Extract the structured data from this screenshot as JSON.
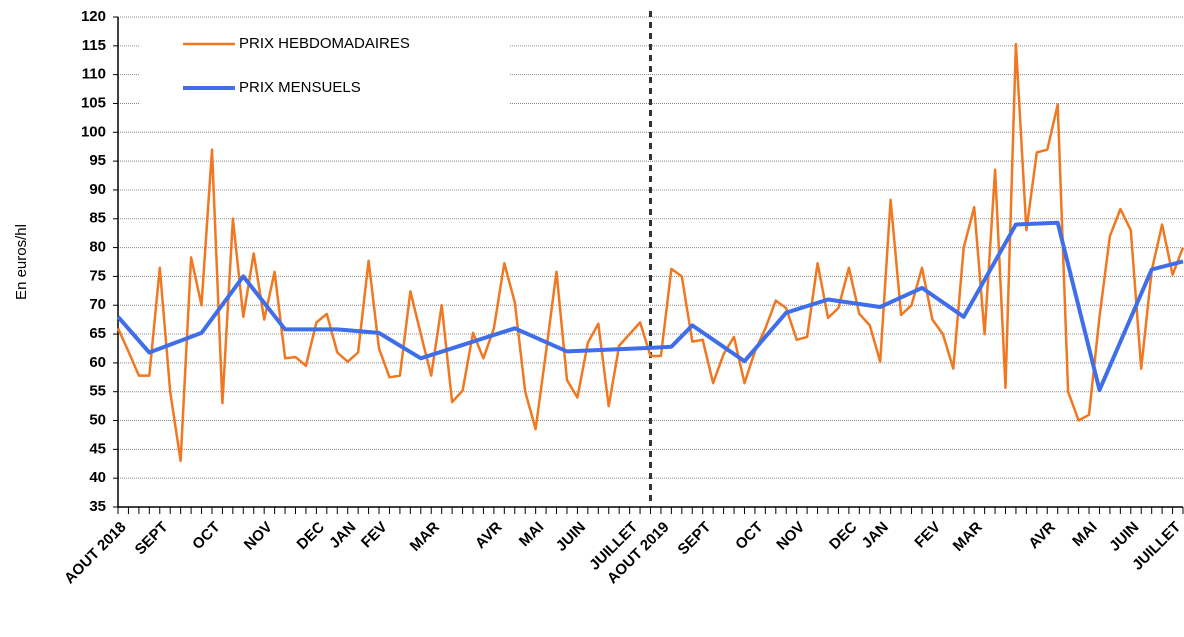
{
  "chart_data": {
    "type": "line",
    "y_axis_label": "En euros/hl",
    "xlim": [
      0,
      102
    ],
    "ylim": [
      35,
      120
    ],
    "yticks": [
      35,
      40,
      45,
      50,
      55,
      60,
      65,
      70,
      75,
      80,
      85,
      90,
      95,
      100,
      105,
      110,
      115,
      120
    ],
    "xticks": [
      {
        "value": 0,
        "label": "AOUT 2018"
      },
      {
        "value": 4,
        "label": "SEPT"
      },
      {
        "value": 9,
        "label": "OCT"
      },
      {
        "value": 14,
        "label": "NOV"
      },
      {
        "value": 19,
        "label": "DEC"
      },
      {
        "value": 22,
        "label": "JAN"
      },
      {
        "value": 25,
        "label": "FEV"
      },
      {
        "value": 30,
        "label": "MAR"
      },
      {
        "value": 36,
        "label": "AVR"
      },
      {
        "value": 40,
        "label": "MAI"
      },
      {
        "value": 44,
        "label": "JUIN"
      },
      {
        "value": 49,
        "label": "JUILLET"
      },
      {
        "value": 52,
        "label": "AOUT 2019"
      },
      {
        "value": 56,
        "label": "SEPT"
      },
      {
        "value": 61,
        "label": "OCT"
      },
      {
        "value": 65,
        "label": "NOV"
      },
      {
        "value": 70,
        "label": "DEC"
      },
      {
        "value": 73,
        "label": "JAN"
      },
      {
        "value": 78,
        "label": "FEV"
      },
      {
        "value": 82,
        "label": "MAR"
      },
      {
        "value": 89,
        "label": "AVR"
      },
      {
        "value": 93,
        "label": "MAI"
      },
      {
        "value": 97,
        "label": "JUIN"
      },
      {
        "value": 101,
        "label": "JUILLET"
      }
    ],
    "grid": true,
    "legend": "top-left",
    "divider_x": 51,
    "series": [
      {
        "name": "PRIX HEBDOMADAIRES",
        "color": "#f07820",
        "x": [
          0,
          1,
          2,
          3,
          4,
          5,
          6,
          7,
          8,
          9,
          10,
          11,
          12,
          13,
          14,
          15,
          16,
          17,
          18,
          19,
          20,
          21,
          22,
          23,
          24,
          25,
          26,
          27,
          28,
          29,
          30,
          31,
          32,
          33,
          34,
          35,
          36,
          37,
          38,
          39,
          40,
          41,
          42,
          43,
          44,
          45,
          46,
          47,
          48,
          49,
          50,
          51,
          52,
          53,
          54,
          55,
          56,
          57,
          58,
          59,
          60,
          61,
          62,
          63,
          64,
          65,
          66,
          67,
          68,
          69,
          70,
          71,
          72,
          73,
          74,
          75,
          76,
          77,
          78,
          79,
          80,
          81,
          82,
          83,
          84,
          85,
          86,
          87,
          88,
          89,
          90,
          91,
          92,
          93,
          94,
          95,
          96,
          97,
          98,
          99,
          100,
          101,
          102
        ],
        "values": [
          66,
          62,
          57.8,
          57.8,
          76.5,
          55,
          43,
          78.3,
          70,
          97,
          53,
          85,
          68,
          79,
          67.5,
          75.8,
          60.8,
          61,
          59.5,
          67,
          68.5,
          61.8,
          60.2,
          61.8,
          77.7,
          62.5,
          57.5,
          57.8,
          72.4,
          65,
          57.8,
          70,
          53.2,
          55.2,
          65.2,
          60.8,
          66,
          77.3,
          70.5,
          55,
          48.5,
          62,
          75.8,
          57,
          54,
          63.5,
          66.8,
          52.5,
          63,
          65,
          67,
          61.2,
          61.2,
          76.3,
          75,
          63.7,
          64,
          56.5,
          61.5,
          64.5,
          56.5,
          62,
          66,
          70.8,
          69.5,
          64,
          64.5,
          77.3,
          67.8,
          69.5,
          76.5,
          68.5,
          66.5,
          60.2,
          88.3,
          68.3,
          70,
          76.5,
          67.5,
          65,
          59,
          80,
          87,
          65,
          93.5,
          55.7,
          115.3,
          83,
          96.5,
          97,
          104.8,
          55,
          50,
          51,
          68,
          82,
          86.7,
          83,
          59,
          76,
          84,
          75.3,
          80
        ]
      },
      {
        "name": "PRIX MENSUELS",
        "color": "#3f6ee8",
        "x": [
          0,
          3,
          8,
          12,
          16,
          21,
          25,
          29,
          38,
          43,
          51,
          53,
          55,
          60,
          64,
          68,
          73,
          77,
          81,
          86,
          90,
          94,
          99,
          102
        ],
        "values": [
          68,
          61.8,
          65.2,
          75,
          65.8,
          65.8,
          65.2,
          60.8,
          66,
          62,
          62.6,
          62.8,
          66.5,
          60.3,
          68.7,
          71,
          69.7,
          73,
          68,
          84,
          84.3,
          55.3,
          76.2,
          77.6
        ]
      }
    ]
  }
}
